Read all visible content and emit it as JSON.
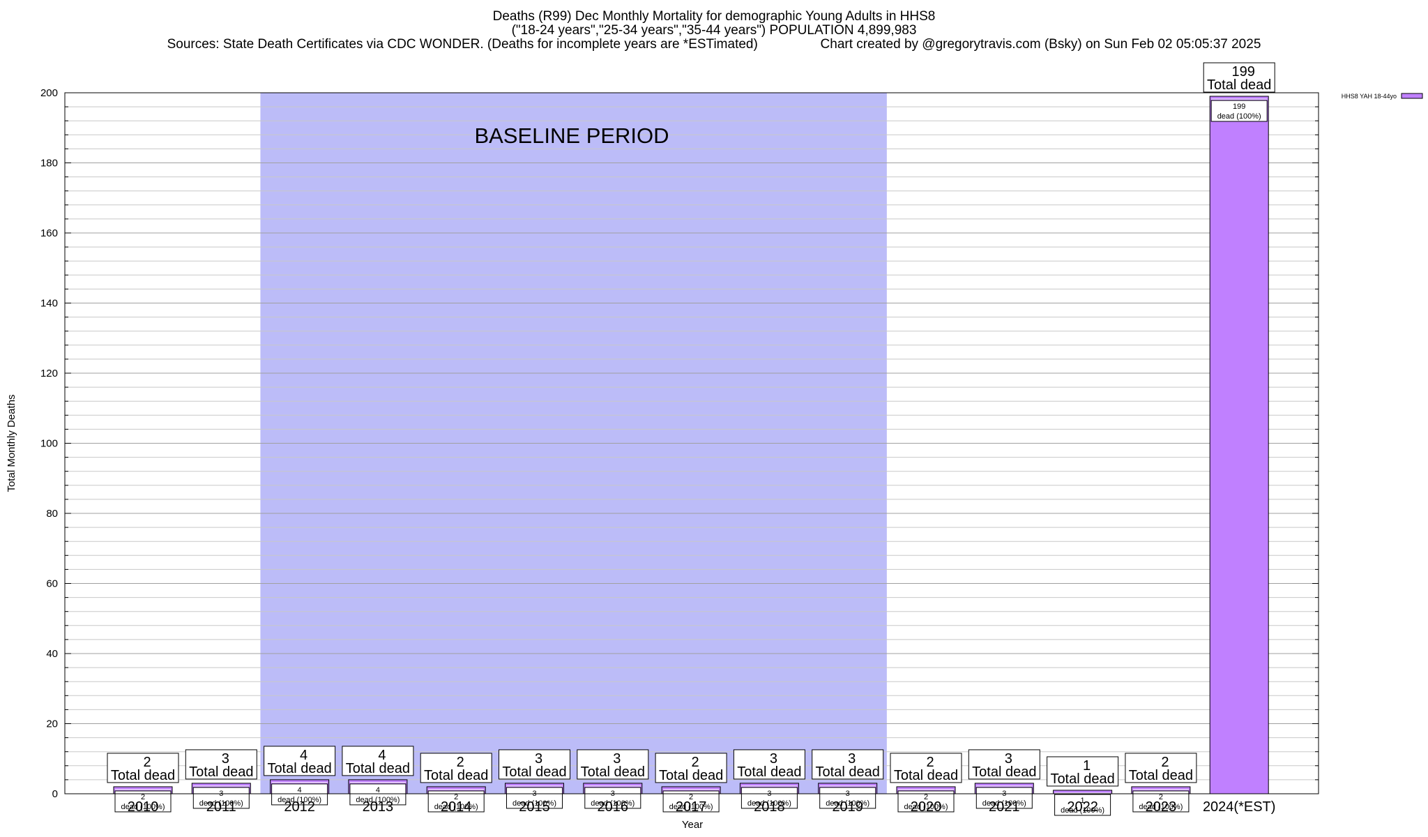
{
  "chart_data": {
    "type": "bar",
    "title_lines": [
      "Deaths (R99) Dec Monthly Mortality for demographic Young Adults in HHS8",
      "(\"18-24 years\",\"25-34 years\",\"35-44 years\") POPULATION 4,899,983",
      "Sources: State Death Certificates via CDC WONDER. (Deaths for incomplete years are *ESTimated)                 Chart created by @gregorytravis.com (Bsky) on Sun Feb 02 05:05:37 2025"
    ],
    "xlabel": "Year",
    "ylabel": "Total Monthly Deaths",
    "ylim": [
      0,
      200
    ],
    "y_major_ticks": [
      0,
      20,
      40,
      60,
      80,
      100,
      120,
      140,
      160,
      180,
      200
    ],
    "y_minor_step": 4,
    "grid": true,
    "categories": [
      "2010",
      "2011",
      "2012",
      "2013",
      "2014",
      "2015",
      "2016",
      "2017",
      "2018",
      "2019",
      "2020",
      "2021",
      "2022",
      "2023",
      "2024(*EST)"
    ],
    "series": [
      {
        "name": "HHS8 YAH 18-44yo",
        "color": "#c080ff",
        "values": [
          2,
          3,
          4,
          4,
          2,
          3,
          3,
          2,
          3,
          3,
          2,
          3,
          1,
          2,
          199
        ]
      }
    ],
    "total_label": "Total dead",
    "bar_label_suffix": "dead (100%)",
    "baseline": {
      "label": "BASELINE PERIOD",
      "from": "2012",
      "to": "2019",
      "color": "#bcbcf8"
    },
    "legend_placement": "top-right"
  }
}
